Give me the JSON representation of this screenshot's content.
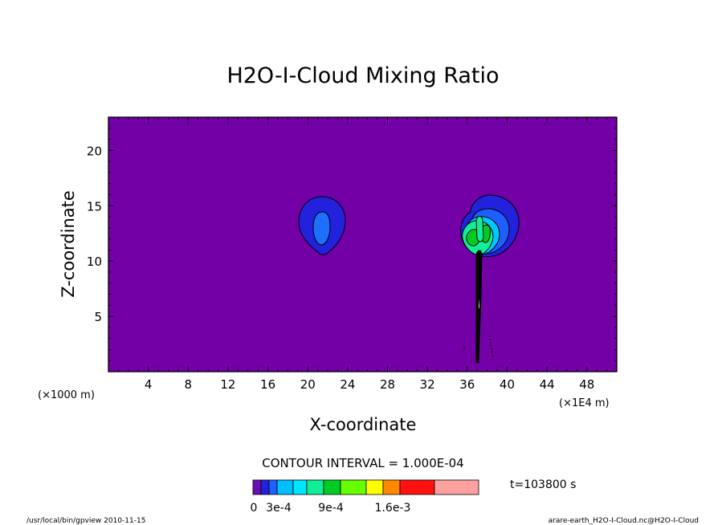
{
  "chart_data": {
    "type": "contour",
    "title": "H2O-I-Cloud Mixing Ratio",
    "xlabel": "X-coordinate",
    "ylabel": "Z-coordinate",
    "x_unit_left": "(×1000 m)",
    "x_unit_right": "(×1E4 m)",
    "xlim": [
      0,
      51
    ],
    "ylim": [
      0,
      23
    ],
    "x_ticks": [
      4,
      8,
      12,
      16,
      20,
      24,
      28,
      32,
      36,
      40,
      44,
      48
    ],
    "y_ticks": [
      5,
      10,
      15,
      20
    ],
    "contour_interval": "CONTOUR INTERVAL = 1.000E-04",
    "time_label": "t=103800  s",
    "colorbar": {
      "colors": [
        "#6a0fb0",
        "#2222dd",
        "#1f5fff",
        "#00bfff",
        "#00e5ff",
        "#11ee99",
        "#00cc22",
        "#66ff00",
        "#ffff00",
        "#ff8800",
        "#ff1111",
        "#ffa0a0"
      ],
      "labels": [
        "0",
        "3e-4",
        "9e-4",
        "1.6e-3"
      ]
    },
    "footer_left": "/usr/local/bin/gpview   2010-11-15",
    "footer_right": "arare-earth_H2O-I-Cloud.nc@H2O-I-Cloud",
    "background_color": "#7300a6",
    "features": [
      {
        "name": "left-cloud",
        "x_center": 21.5,
        "z_center": 13.3,
        "x_halfwidth": 2.3,
        "z_halfheight": 2.5
      },
      {
        "name": "right-cloud",
        "x_center": 38.5,
        "z_center": 13.0,
        "x_halfwidth": 3.5,
        "z_halfheight": 3.0
      },
      {
        "name": "updraft-stem",
        "x_center": 37.3,
        "z_bottom": 0.8,
        "z_top": 11.0
      }
    ]
  }
}
